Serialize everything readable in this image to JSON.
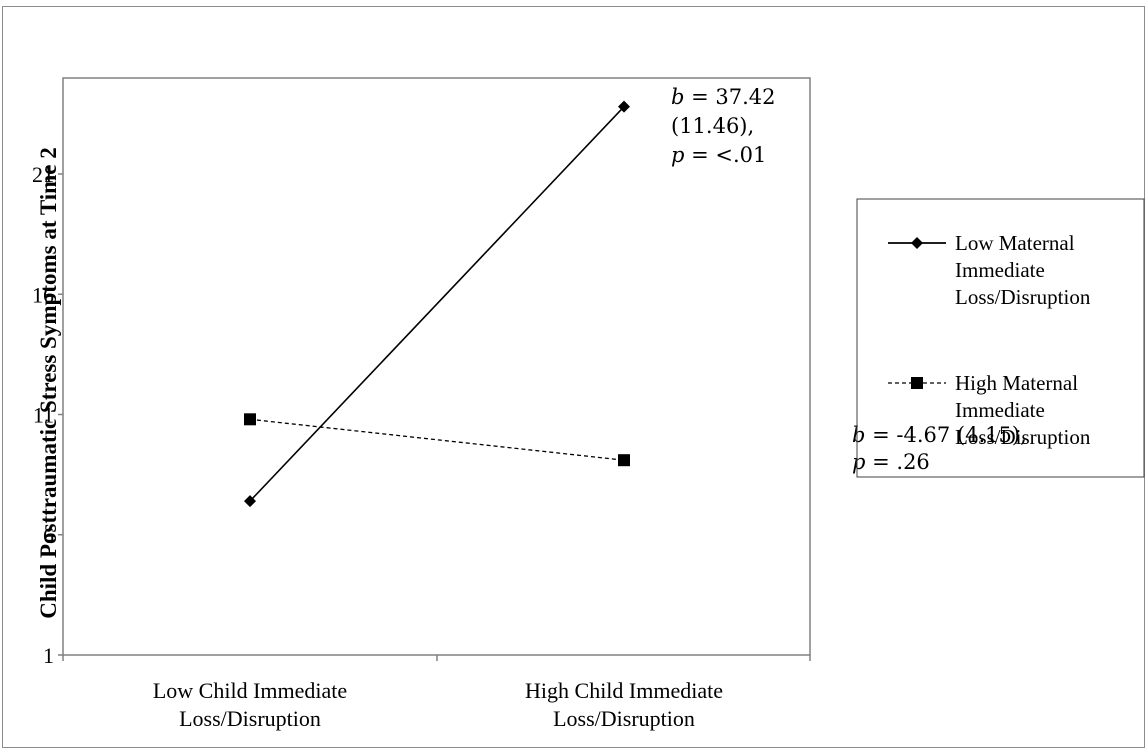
{
  "chart_data": {
    "type": "line",
    "ylabel": "Child Posttraumatic Stress Symptoms at Time 2",
    "xlabel": "",
    "ylim": [
      1,
      24
    ],
    "yticks": [
      1,
      6,
      11,
      16,
      21
    ],
    "ytick_labels": [
      "1",
      "6",
      "11",
      "16",
      "21"
    ],
    "categories": [
      "Low Child Immediate Loss/Disruption",
      "High Child Immediate Loss/Disruption"
    ],
    "category_lines": [
      [
        "Low Child Immediate",
        "Loss/Disruption"
      ],
      [
        "High Child Immediate",
        "Loss/Disruption"
      ]
    ],
    "series": [
      {
        "name": "Low Maternal Immediate Loss/Disruption",
        "legend_lines": [
          "Low Maternal",
          "Immediate",
          "Loss/Disruption"
        ],
        "values": [
          7.4,
          23.8
        ],
        "marker": "diamond",
        "line_style": "solid",
        "color": "#000000"
      },
      {
        "name": "High Maternal Immediate Loss/Disruption",
        "legend_lines": [
          "High Maternal",
          "Immediate",
          "Loss/Disruption"
        ],
        "values": [
          10.8,
          9.1
        ],
        "marker": "square",
        "line_style": "dashed",
        "color": "#000000"
      }
    ],
    "annotations": [
      {
        "lines": [
          [
            "b",
            " = 37.42"
          ],
          [
            "",
            "(11.46),"
          ],
          [
            "p",
            " = <.01"
          ]
        ]
      },
      {
        "lines": [
          [
            "b",
            " = -4.67 (4.15),"
          ],
          [
            "p",
            " = .26"
          ]
        ]
      }
    ],
    "grid": false,
    "legend_position": "right"
  }
}
